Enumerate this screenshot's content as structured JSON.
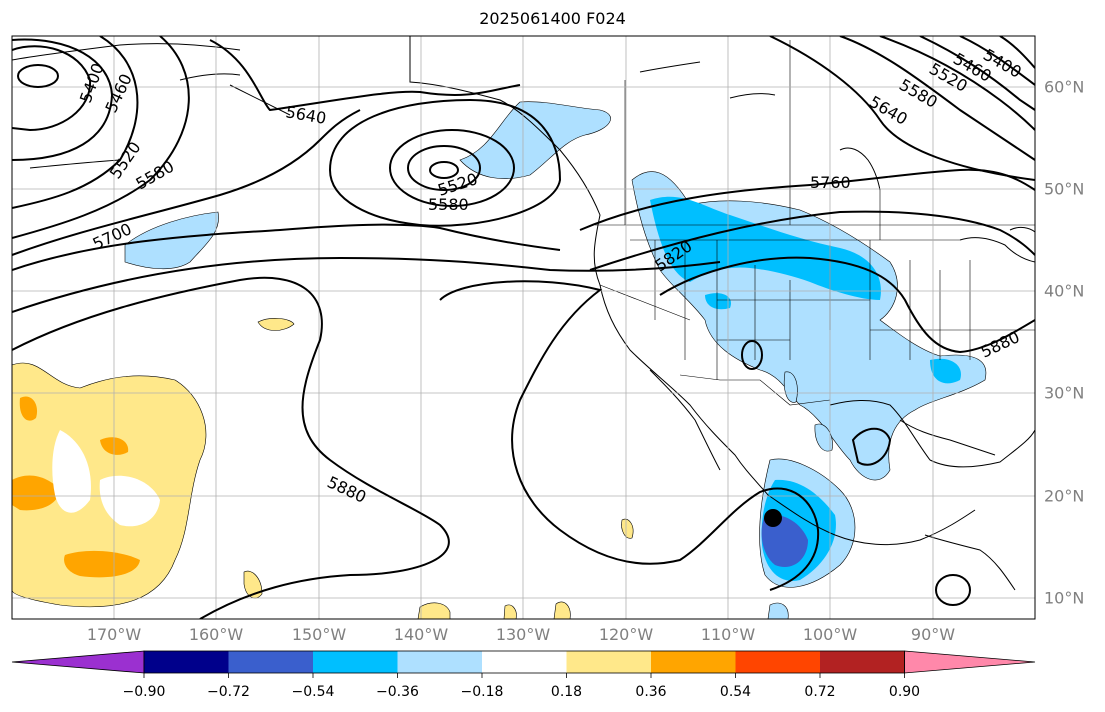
{
  "title": "2025061400 F024",
  "lon_labels": [
    "170°W",
    "160°W",
    "150°W",
    "140°W",
    "130°W",
    "120°W",
    "110°W",
    "100°W",
    "90°W"
  ],
  "lat_labels": [
    "60°N",
    "50°N",
    "40°N",
    "30°N",
    "20°N",
    "10°N"
  ],
  "contour_labels": [
    "5400",
    "5460",
    "5520",
    "5580",
    "5640",
    "5700",
    "5520",
    "5580",
    "5760",
    "5820",
    "5880",
    "5880",
    "5640",
    "5580",
    "5520",
    "5460",
    "5400"
  ],
  "colorbar": {
    "ticks": [
      "−0.90",
      "−0.72",
      "−0.54",
      "−0.36",
      "−0.18",
      "0.18",
      "0.36",
      "0.54",
      "0.72",
      "0.90"
    ],
    "colors": [
      "#9b30d0",
      "#00008b",
      "#3a5fcd",
      "#00bfff",
      "#aee0ff",
      "#ffffff",
      "#ffe88a",
      "#ffa500",
      "#ff4500",
      "#b22222",
      "#ff88aa"
    ]
  },
  "marker": "hurricane-center"
}
